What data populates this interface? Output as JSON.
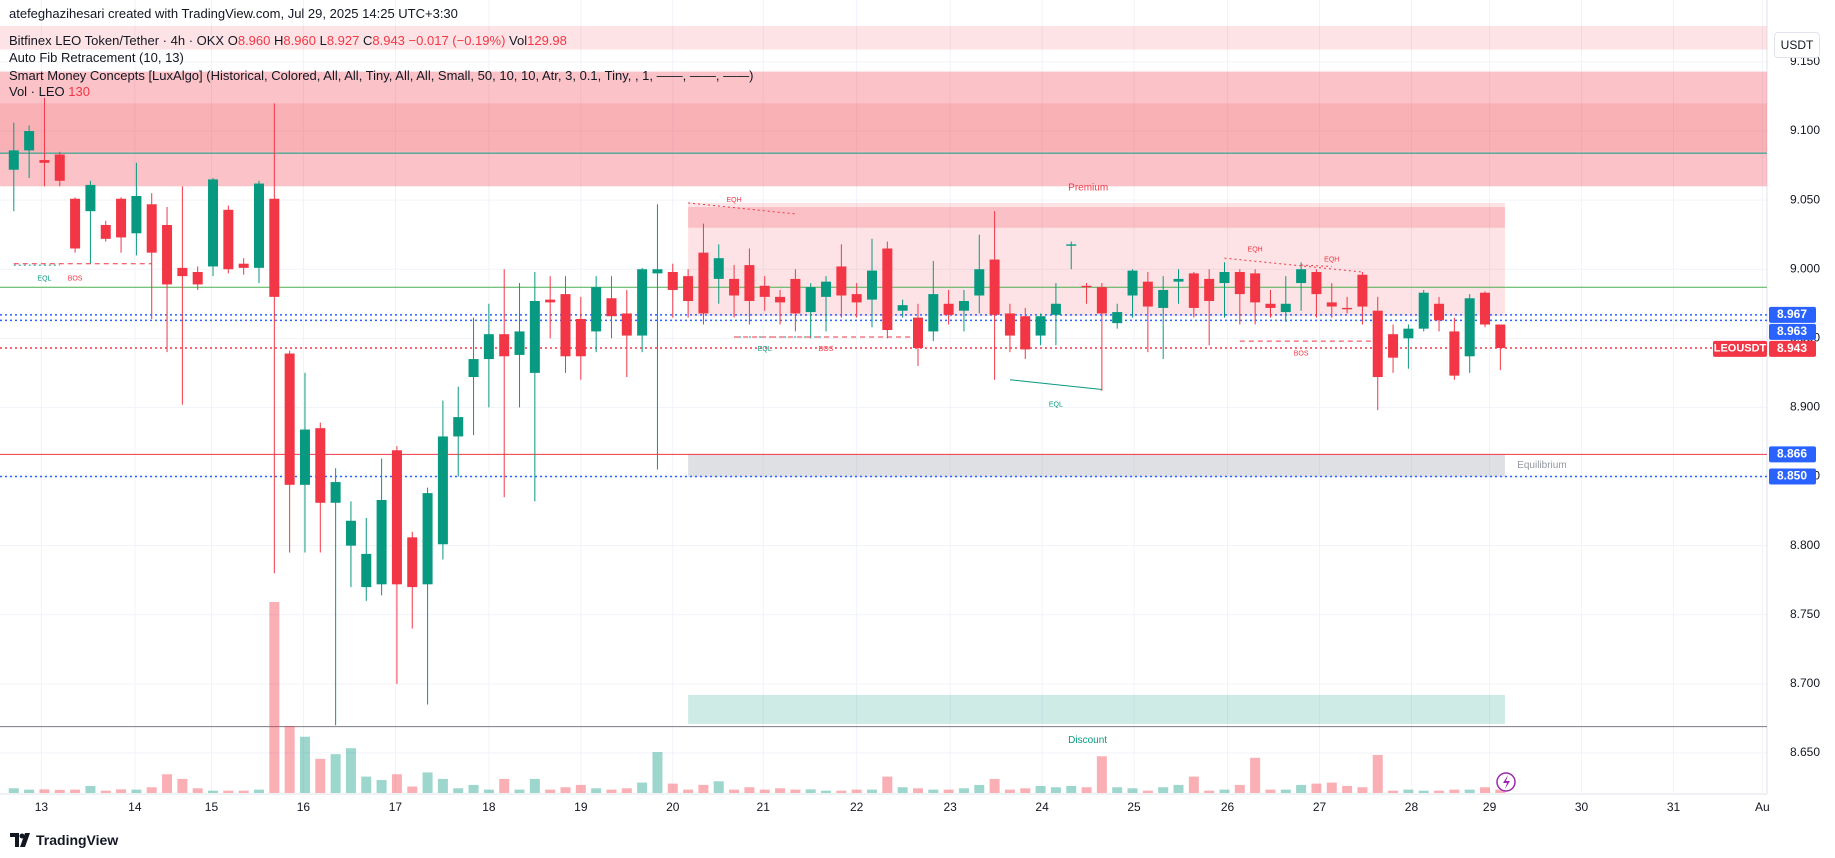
{
  "header": {
    "author_line": "atefeghazihesari created with TradingView.com, Jul 29, 2025 14:25 UTC+3:30"
  },
  "legend": {
    "symbol": "Bitfinex LEO Token/Tether · 4h · OKX",
    "o_label": "O",
    "open": "8.960",
    "h_label": "H",
    "high": "8.960",
    "l_label": "L",
    "low": "8.927",
    "c_label": "C",
    "close": "8.943",
    "change": "−0.017 (−0.19%)",
    "vol_label": "Vol",
    "vol": "129.98",
    "indicators": [
      "Auto Fib Retracement (10, 13)",
      "Smart Money Concepts [LuxAlgo] (Historical, Colored, All, All, Tiny, All, All, Small, 50, 10, 10, Atr, 3, 0.1, Tiny, , 1, ——, ——, ——)"
    ],
    "volume_name": "Vol · LEO",
    "volume_value": "130"
  },
  "footer": {
    "brand": "TradingView"
  },
  "chart_data": {
    "type": "candlestick",
    "y_unit": "USDT",
    "up_color": "#089981",
    "down_color": "#f23645",
    "grid": true,
    "xlim": [
      -0.9,
      114.4
    ],
    "ylim": [
      8.621,
      9.176
    ],
    "xticks": [
      {
        "value": 1.8,
        "label": "13"
      },
      {
        "value": 7.9,
        "label": "14"
      },
      {
        "value": 12.9,
        "label": "15"
      },
      {
        "value": 18.9,
        "label": "16"
      },
      {
        "value": 24.9,
        "label": "17"
      },
      {
        "value": 31,
        "label": "18"
      },
      {
        "value": 37,
        "label": "19"
      },
      {
        "value": 43,
        "label": "20"
      },
      {
        "value": 48.9,
        "label": "21"
      },
      {
        "value": 55,
        "label": "22"
      },
      {
        "value": 61.1,
        "label": "23"
      },
      {
        "value": 67.1,
        "label": "24"
      },
      {
        "value": 73.1,
        "label": "25"
      },
      {
        "value": 79.2,
        "label": "26"
      },
      {
        "value": 85.2,
        "label": "27"
      },
      {
        "value": 91.2,
        "label": "28"
      },
      {
        "value": 96.3,
        "label": "29"
      },
      {
        "value": 102.3,
        "label": "30"
      },
      {
        "value": 108.3,
        "label": "31"
      },
      {
        "value": 114.1,
        "label": "Au"
      }
    ],
    "yticks": [
      {
        "value": 9.15,
        "label": "9.150"
      },
      {
        "value": 9.1,
        "label": "9.100"
      },
      {
        "value": 9.05,
        "label": "9.050"
      },
      {
        "value": 9.0,
        "label": "9.000"
      },
      {
        "value": 8.95,
        "label": "8.950"
      },
      {
        "value": 8.9,
        "label": "8.900"
      },
      {
        "value": 8.85,
        "label": "8.850"
      },
      {
        "value": 8.8,
        "label": "8.800"
      },
      {
        "value": 8.75,
        "label": "8.750"
      },
      {
        "value": 8.7,
        "label": "8.700"
      },
      {
        "value": 8.65,
        "label": "8.650"
      }
    ],
    "candles": {
      "open": [
        9.072,
        9.086,
        9.079,
        9.083,
        9.051,
        9.042,
        9.032,
        9.051,
        9.026,
        9.047,
        9.032,
        9.001,
        8.998,
        9.002,
        9.043,
        9.004,
        9.001,
        9.051,
        8.939,
        8.844,
        8.885,
        8.831,
        8.8,
        8.77,
        8.772,
        8.869,
        8.806,
        8.772,
        8.801,
        8.879,
        8.922,
        8.935,
        8.953,
        8.938,
        8.925,
        8.978,
        8.982,
        8.964,
        8.955,
        8.979,
        8.968,
        8.952,
        8.997,
        8.998,
        8.995,
        9.012,
        8.993,
        8.993,
        9.003,
        8.988,
        8.98,
        8.993,
        8.969,
        8.98,
        9.002,
        8.982,
        8.978,
        9.015,
        8.97,
        8.965,
        8.955,
        8.975,
        8.97,
        8.981,
        9.007,
        8.968,
        8.966,
        8.952,
        8.967,
        9.017,
        8.988,
        8.987,
        8.961,
        8.981,
        8.991,
        8.972,
        8.991,
        8.997,
        8.993,
        8.99,
        8.998,
        8.997,
        8.975,
        8.969,
        8.99,
        8.998,
        8.976,
        8.972,
        8.996,
        8.97,
        8.953,
        8.95,
        8.957,
        8.975,
        8.955,
        8.937,
        8.983,
        8.96
      ],
      "high": [
        9.106,
        9.104,
        9.124,
        9.085,
        9.052,
        9.064,
        9.035,
        9.052,
        9.077,
        9.055,
        9.045,
        9.06,
        9.002,
        9.066,
        9.046,
        9.008,
        9.064,
        9.12,
        8.941,
        8.925,
        8.889,
        8.856,
        8.832,
        8.82,
        8.863,
        8.872,
        8.81,
        8.842,
        8.905,
        8.915,
        8.965,
        8.975,
        9.0,
        8.99,
        8.998,
        8.995,
        8.995,
        8.98,
        8.995,
        8.995,
        8.985,
        9.001,
        9.047,
        9.004,
        9.0,
        9.033,
        9.018,
        9.003,
        9.015,
        8.995,
        8.985,
        9.0,
        8.99,
        8.995,
        9.018,
        8.99,
        9.022,
        9.02,
        8.978,
        8.975,
        9.006,
        8.985,
        8.985,
        9.025,
        9.042,
        8.975,
        8.972,
        8.968,
        8.99,
        9.02,
        8.99,
        8.99,
        8.975,
        9.0,
        8.998,
        8.995,
        9.0,
        8.998,
        9.0,
        9.005,
        9.0,
        9.0,
        8.985,
        8.995,
        9.005,
        9.0,
        8.99,
        8.98,
        8.998,
        8.98,
        8.96,
        8.96,
        8.985,
        8.98,
        8.965,
        8.982,
        8.984,
        8.96
      ],
      "low": [
        9.042,
        9.066,
        9.06,
        9.06,
        9.012,
        9.004,
        9.02,
        9.012,
        9.01,
        8.964,
        8.94,
        8.902,
        8.985,
        8.995,
        8.997,
        8.996,
        8.99,
        8.78,
        8.795,
        8.795,
        8.795,
        8.67,
        8.77,
        8.76,
        8.764,
        8.7,
        8.74,
        8.685,
        8.79,
        8.85,
        8.88,
        8.9,
        8.835,
        8.9,
        8.832,
        8.95,
        8.925,
        8.92,
        8.94,
        8.95,
        8.922,
        8.94,
        8.855,
        8.965,
        8.965,
        8.96,
        8.975,
        8.965,
        8.96,
        8.97,
        8.96,
        8.955,
        8.95,
        8.955,
        8.965,
        8.965,
        8.958,
        8.95,
        8.965,
        8.93,
        8.948,
        8.96,
        8.955,
        8.968,
        8.92,
        8.94,
        8.935,
        8.945,
        8.945,
        9.0,
        8.975,
        8.912,
        8.957,
        8.965,
        8.94,
        8.935,
        8.975,
        8.965,
        8.945,
        8.965,
        8.96,
        8.96,
        8.965,
        8.962,
        8.97,
        8.965,
        8.965,
        8.968,
        8.96,
        8.898,
        8.925,
        8.928,
        8.955,
        8.955,
        8.92,
        8.925,
        8.958,
        8.927
      ],
      "close": [
        9.086,
        9.1,
        9.077,
        9.064,
        9.015,
        9.061,
        9.022,
        9.023,
        9.053,
        9.012,
        8.989,
        8.995,
        8.989,
        9.065,
        9.0,
        9.001,
        9.062,
        8.98,
        8.844,
        8.884,
        8.831,
        8.846,
        8.818,
        8.794,
        8.833,
        8.772,
        8.77,
        8.838,
        8.879,
        8.893,
        8.935,
        8.953,
        8.937,
        8.955,
        8.977,
        8.976,
        8.937,
        8.937,
        8.987,
        8.966,
        8.952,
        9.0,
        9.0,
        8.985,
        8.977,
        8.968,
        9.008,
        8.981,
        8.977,
        8.98,
        8.976,
        8.968,
        8.987,
        8.991,
        8.981,
        8.976,
        8.999,
        8.956,
        8.974,
        8.943,
        8.982,
        8.967,
        8.977,
        9.0,
        8.967,
        8.952,
        8.942,
        8.966,
        8.975,
        9.018,
        8.987,
        8.968,
        8.969,
        8.999,
        8.973,
        8.985,
        8.993,
        8.972,
        8.977,
        8.998,
        8.982,
        8.976,
        8.972,
        8.975,
        9.0,
        8.982,
        8.973,
        8.971,
        8.973,
        8.922,
        8.936,
        8.957,
        8.983,
        8.963,
        8.923,
        8.979,
        8.96,
        8.943
      ]
    },
    "volumes": [
      180,
      130,
      140,
      120,
      130,
      270,
      90,
      140,
      130,
      220,
      720,
      540,
      180,
      90,
      90,
      90,
      130,
      7330,
      2570,
      2160,
      1310,
      1490,
      1720,
      630,
      500,
      720,
      250,
      790,
      540,
      180,
      310,
      130,
      540,
      130,
      540,
      130,
      220,
      310,
      180,
      130,
      180,
      400,
      1570,
      360,
      130,
      310,
      450,
      130,
      220,
      130,
      180,
      130,
      140,
      90,
      90,
      130,
      130,
      630,
      220,
      180,
      130,
      130,
      180,
      310,
      540,
      130,
      180,
      270,
      220,
      270,
      220,
      1410,
      220,
      180,
      90,
      220,
      310,
      630,
      90,
      130,
      310,
      1350,
      130,
      130,
      310,
      360,
      400,
      270,
      220,
      1460,
      90,
      130,
      90,
      90,
      130,
      130,
      220,
      130
    ],
    "zones": [
      {
        "top": 9.176,
        "bottom": 9.159,
        "color": "#f23645",
        "opacity": 0.14
      },
      {
        "label": "Premium",
        "top": 9.143,
        "bottom": 9.06,
        "color": "#f23645",
        "opacity": 0.3,
        "label_x": 68.8,
        "label_y": 9.059
      },
      {
        "top": 9.12,
        "bottom": 9.085,
        "color": "#f23645",
        "opacity": 0.12
      },
      {
        "top": 9.048,
        "bottom": 8.966,
        "from": 44,
        "to": 97.3,
        "color": "#f23645",
        "opacity": 0.14
      },
      {
        "top": 9.045,
        "bottom": 9.03,
        "from": 44,
        "to": 97.3,
        "color": "#f23645",
        "opacity": 0.2
      },
      {
        "label": "Equilibrium",
        "top": 8.866,
        "bottom": 8.85,
        "from": 44,
        "to": 97.3,
        "color": "#9598a1",
        "opacity": 0.3,
        "label_x": 98.1,
        "label_y": 8.858
      },
      {
        "label": "Discount",
        "top": 8.692,
        "bottom": 8.671,
        "from": 44,
        "to": 97.3,
        "color": "#089981",
        "opacity": 0.2,
        "label_x": 68.8,
        "label_y": 8.659
      }
    ],
    "levels": [
      {
        "value": 9.084,
        "color": "#089981",
        "style": "solid"
      },
      {
        "value": 8.987,
        "color": "#4caf50",
        "style": "solid"
      },
      {
        "value": 8.967,
        "color": "#2962ff",
        "style": "dotted",
        "badge": true
      },
      {
        "value": 8.963,
        "color": "#2962ff",
        "style": "dotted",
        "badge": true
      },
      {
        "value": 8.943,
        "color": "#f23645",
        "style": "dotted",
        "badge": true,
        "name": "LEOUSDT"
      },
      {
        "value": 8.866,
        "color": "#f23645",
        "style": "solid",
        "badge": true,
        "badge_color": "#2962ff"
      },
      {
        "value": 8.85,
        "label": "8.850",
        "color": "#2962ff",
        "style": "dotted",
        "badge": true
      },
      {
        "value": 8.669,
        "color": "#787b86",
        "style": "solid"
      }
    ],
    "structures": [
      {
        "label": "EQL",
        "color": "#089981",
        "style": "dotted",
        "from": 0,
        "to": 3,
        "y1": 9.003,
        "y2": 9.003,
        "label_x": 2,
        "label_y": 8.993
      },
      {
        "label": "BOS",
        "color": "#f23645",
        "style": "dashed",
        "from": 0,
        "to": 9,
        "y1": 9.004,
        "y2": 9.004,
        "label_x": 4,
        "label_y": 8.993
      },
      {
        "label": "EQH",
        "color": "#f23645",
        "style": "dotted",
        "from": 44,
        "to": 51,
        "y1": 9.048,
        "y2": 9.04,
        "label_x": 47,
        "label_y": 9.05
      },
      {
        "label": "EQL",
        "color": "#089981",
        "style": "dotted",
        "from": 47,
        "to": 53,
        "y1": 8.951,
        "y2": 8.951,
        "label_x": 49,
        "label_y": 8.942
      },
      {
        "label": "BOS",
        "color": "#f23645",
        "style": "dashed",
        "from": 47,
        "to": 59,
        "y1": 8.951,
        "y2": 8.951,
        "label_x": 53,
        "label_y": 8.942
      },
      {
        "label": "EQL",
        "color": "#089981",
        "style": "solid",
        "from": 65,
        "to": 71,
        "y1": 8.92,
        "y2": 8.913,
        "label_x": 68,
        "label_y": 8.902
      },
      {
        "label": "EQH",
        "color": "#f23645",
        "style": "dotted",
        "from": 79,
        "to": 88,
        "y1": 9.008,
        "y2": 8.998,
        "label_x": 81,
        "label_y": 9.014
      },
      {
        "label": "EQH",
        "color": "#f23645",
        "style": "dotted",
        "from": 84,
        "to": 86,
        "y1": 9.003,
        "y2": 9.002,
        "label_x": 86,
        "label_y": 9.007
      },
      {
        "label": "BOS",
        "color": "#f23645",
        "style": "dashed",
        "from": 80,
        "to": 89,
        "y1": 8.948,
        "y2": 8.948,
        "label_x": 84,
        "label_y": 8.939
      }
    ]
  }
}
